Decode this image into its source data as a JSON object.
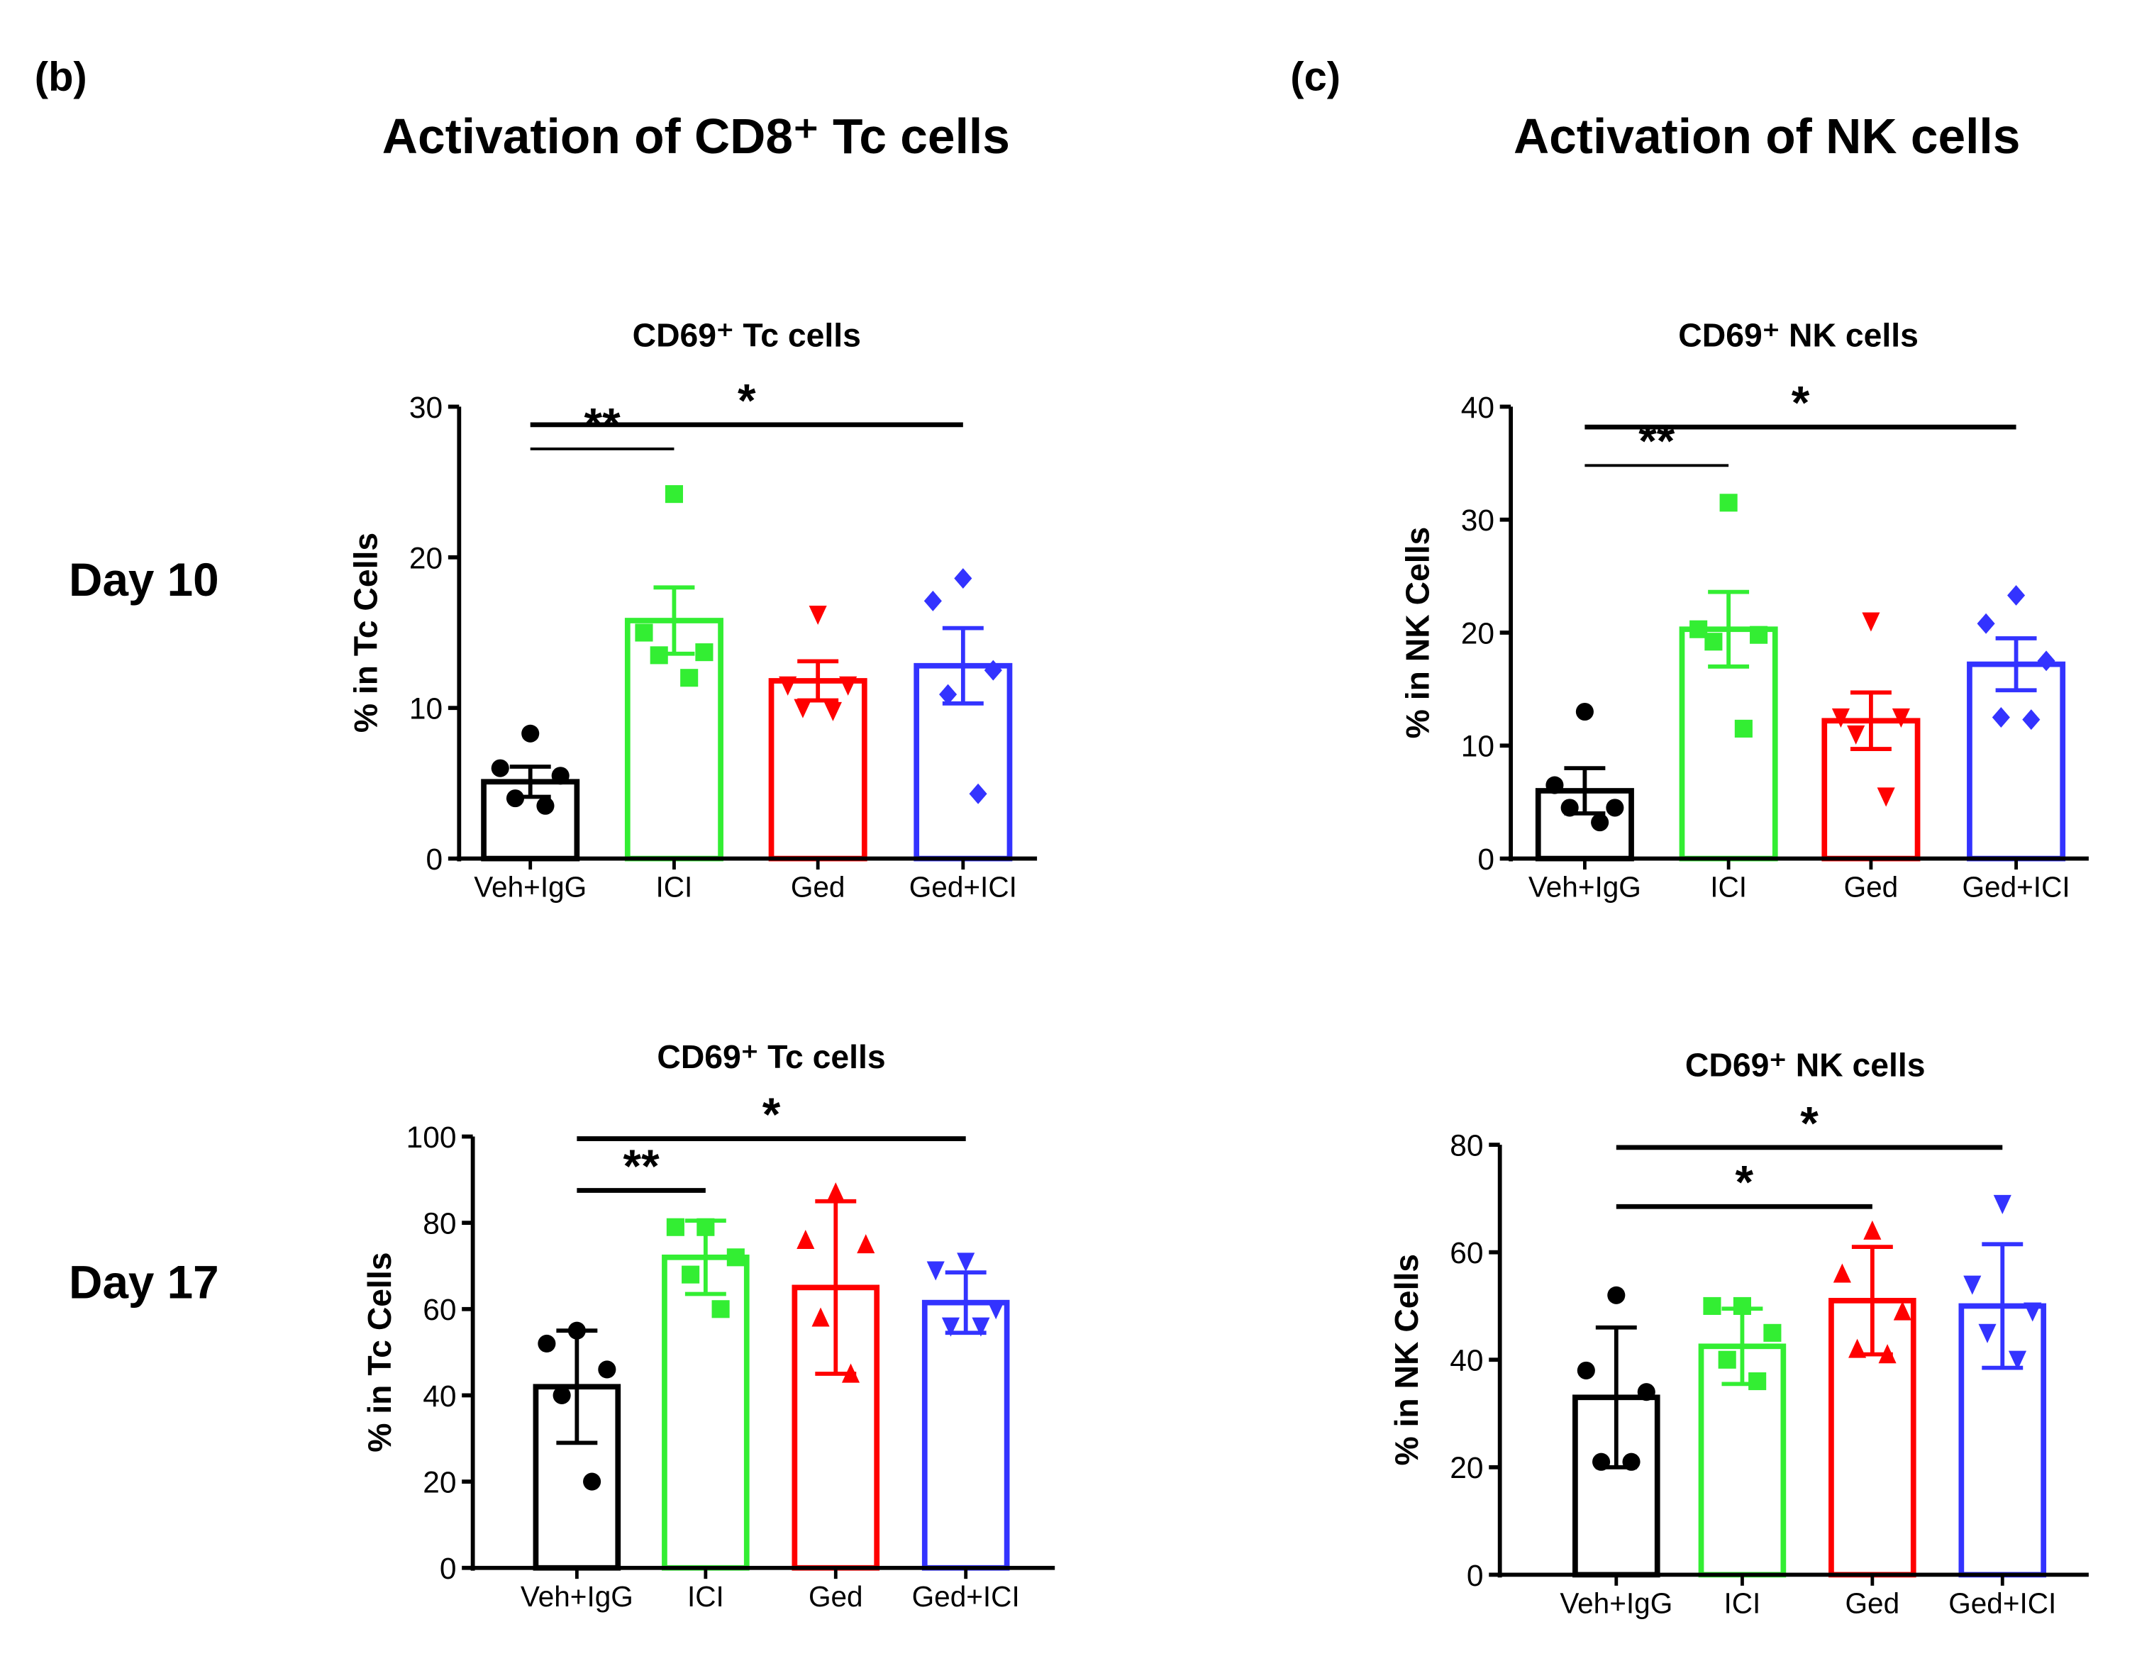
{
  "panels": {
    "b": "(b)",
    "c": "(c)"
  },
  "titles": {
    "b": "Activation of CD8⁺ Tc cells",
    "c": "Activation of NK cells"
  },
  "rows": {
    "d10": "Day 10",
    "d17": "Day 17"
  },
  "colors": {
    "veh": "#000000",
    "ici": "#33ee33",
    "ged": "#ff0000",
    "gedici": "#3333ff"
  },
  "chart_data": [
    {
      "type": "bar",
      "title": "CD69⁺ Tc cells",
      "ylabel": "% in Tc Cells",
      "ylim": [
        0,
        30
      ],
      "yticks": [
        0,
        10,
        20,
        30
      ],
      "error": "SEM",
      "categories": [
        "Veh+IgG",
        "ICI",
        "Ged",
        "Ged+ICI"
      ],
      "markers": [
        "circle",
        "square",
        "tri-down",
        "diamond"
      ],
      "means": [
        5.1,
        15.8,
        11.8,
        12.8
      ],
      "err": [
        1.0,
        2.2,
        1.3,
        2.5
      ],
      "points": [
        [
          8.3,
          6,
          5.5,
          4,
          3.5
        ],
        [
          24.2,
          15,
          13.7,
          13.5,
          12
        ],
        [
          16.2,
          11.5,
          11.5,
          10,
          9.8
        ],
        [
          18.6,
          17.1,
          12.5,
          10.9,
          4.3
        ]
      ],
      "sig": [
        {
          "from": 0,
          "to": 1,
          "y": 27.2,
          "label": "**"
        },
        {
          "from": 0,
          "to": 3,
          "y": 28.8,
          "label": "*"
        }
      ]
    },
    {
      "type": "bar",
      "title": "CD69⁺ NK cells",
      "ylabel": "% in NK Cells",
      "ylim": [
        0,
        40
      ],
      "yticks": [
        0,
        10,
        20,
        30,
        40
      ],
      "error": "SEM",
      "categories": [
        "Veh+IgG",
        "ICI",
        "Ged",
        "Ged+ICI"
      ],
      "markers": [
        "circle",
        "square",
        "tri-down",
        "diamond"
      ],
      "means": [
        6.0,
        20.3,
        12.2,
        17.2
      ],
      "err": [
        2.0,
        3.3,
        2.5,
        2.3
      ],
      "points": [
        [
          13,
          6.5,
          4.5,
          4.5,
          3.2
        ],
        [
          31.5,
          20.3,
          19.8,
          19.2,
          11.5
        ],
        [
          21,
          12.5,
          12.5,
          11,
          5.5
        ],
        [
          23.3,
          20.8,
          17.5,
          12.5,
          12.3
        ]
      ],
      "sig": [
        {
          "from": 0,
          "to": 1,
          "y": 34.8,
          "label": "**"
        },
        {
          "from": 0,
          "to": 3,
          "y": 38.2,
          "label": "*"
        }
      ]
    },
    {
      "type": "bar",
      "title": "CD69⁺ Tc cells",
      "ylabel": "% in Tc Cells",
      "ylim": [
        0,
        100
      ],
      "yticks": [
        0,
        20,
        40,
        60,
        80,
        100
      ],
      "error": "SD",
      "categories": [
        "Veh+IgG",
        "ICI",
        "Ged",
        "Ged+ICI"
      ],
      "markers": [
        "circle",
        "square",
        "tri-up",
        "tri-down"
      ],
      "means": [
        42,
        72,
        65,
        61.5
      ],
      "err": [
        13,
        8.5,
        20,
        7
      ],
      "points": [
        [
          55,
          52,
          46,
          40,
          20
        ],
        [
          79,
          79,
          72,
          68,
          60
        ],
        [
          87,
          76,
          75,
          58,
          45
        ],
        [
          71,
          69,
          60,
          56,
          56
        ]
      ],
      "sig": [
        {
          "from": 0,
          "to": 1,
          "y": 87.5,
          "label": "**"
        },
        {
          "from": 0,
          "to": 3,
          "y": 99.5,
          "label": "*"
        }
      ]
    },
    {
      "type": "bar",
      "title": "CD69⁺ NK cells",
      "ylabel": "% in NK Cells",
      "ylim": [
        0,
        80
      ],
      "yticks": [
        0,
        20,
        40,
        60,
        80
      ],
      "error": "SD",
      "categories": [
        "Veh+IgG",
        "ICI",
        "Ged",
        "Ged+ICI"
      ],
      "markers": [
        "circle",
        "square",
        "tri-up",
        "tri-down"
      ],
      "means": [
        33,
        42.5,
        51,
        50
      ],
      "err": [
        13,
        7,
        10,
        11.5
      ],
      "points": [
        [
          52,
          38,
          34,
          21,
          21
        ],
        [
          50,
          50,
          45,
          40,
          36
        ],
        [
          64,
          56,
          49,
          42,
          41
        ],
        [
          69,
          54,
          49,
          45,
          40
        ]
      ],
      "sig": [
        {
          "from": 0,
          "to": 2,
          "y": 68.5,
          "label": "*"
        },
        {
          "from": 0,
          "to": 3,
          "y": 79.5,
          "label": "*"
        }
      ]
    }
  ]
}
